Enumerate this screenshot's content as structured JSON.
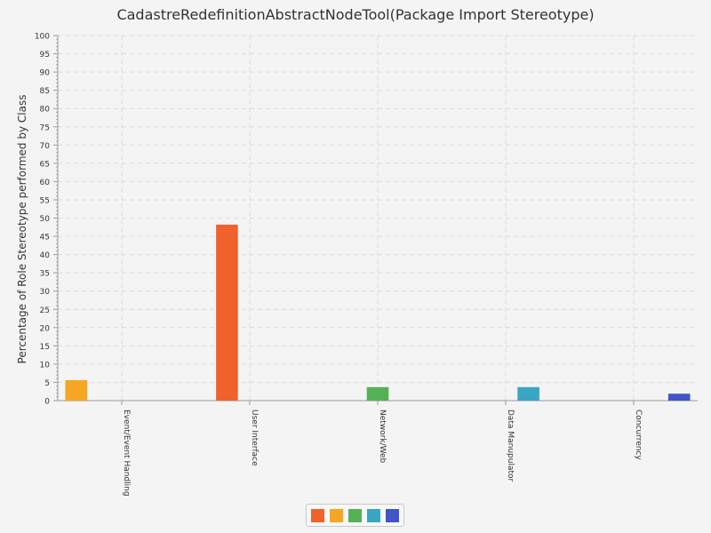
{
  "chart_data": {
    "type": "bar",
    "title": "CadastreRedefinitionAbstractNodeTool(Package Import Stereotype)",
    "xlabel": "",
    "ylabel": "Percentage of Role Stereotype performed by Class",
    "ylim": [
      0,
      100
    ],
    "ytick_step": 5,
    "grid": true,
    "legend_position": "bottom",
    "categories": [
      "Event/Event Handling",
      "User Interface",
      "Network/Web",
      "Data Manupulator",
      "Concurrency"
    ],
    "series": [
      {
        "values": [
          5.6,
          0,
          0,
          0,
          0
        ],
        "color": "#f5a623"
      },
      {
        "values": [
          0,
          48.2,
          0,
          0,
          0
        ],
        "color": "#f0612c"
      },
      {
        "values": [
          0,
          0,
          3.7,
          0,
          0
        ],
        "color": "#55b155"
      },
      {
        "values": [
          0,
          0,
          0,
          3.7,
          0
        ],
        "color": "#3aa5c4"
      },
      {
        "values": [
          0,
          0,
          0,
          0,
          1.9
        ],
        "color": "#4055c8"
      }
    ],
    "legend_colors": [
      "#f0612c",
      "#f5a623",
      "#55b155",
      "#3aa5c4",
      "#4055c8"
    ]
  }
}
